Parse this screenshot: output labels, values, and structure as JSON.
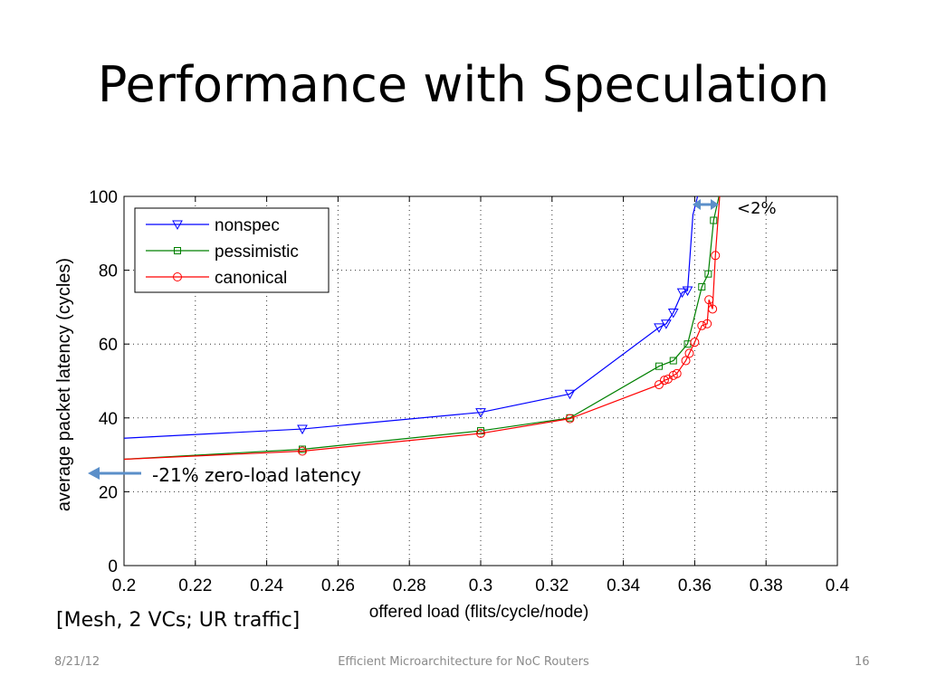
{
  "slide": {
    "title": "Performance with Speculation",
    "annotation_zero_load": "-21% zero-load latency",
    "annotation_gap": "<2%",
    "caption": "[Mesh, 2 VCs; UR traffic]"
  },
  "footer": {
    "date": "8/21/12",
    "center": "Efficient Microarchitecture for NoC Routers",
    "page": "16"
  },
  "colors": {
    "nonspec": "#0000ff",
    "pessimistic": "#008000",
    "canonical": "#ff0000",
    "arrow": "#5b8fc9"
  },
  "chart_data": {
    "type": "line",
    "xlabel": "offered load (flits/cycle/node)",
    "ylabel": "average packet latency (cycles)",
    "xlim": [
      0.2,
      0.4
    ],
    "ylim": [
      0,
      100
    ],
    "xticks": [
      0.2,
      0.22,
      0.24,
      0.26,
      0.28,
      0.3,
      0.32,
      0.34,
      0.36,
      0.38,
      0.4
    ],
    "xtick_labels": [
      "0.2",
      "0.22",
      "0.24",
      "0.26",
      "0.28",
      "0.3",
      "0.32",
      "0.34",
      "0.36",
      "0.38",
      "0.4"
    ],
    "yticks": [
      0,
      20,
      40,
      60,
      80,
      100
    ],
    "ytick_labels": [
      "0",
      "20",
      "40",
      "60",
      "80",
      "100"
    ],
    "grid": true,
    "legend_position": "top-left",
    "series": [
      {
        "name": "nonspec",
        "marker": "triangle-down",
        "x": [
          0.2,
          0.25,
          0.3,
          0.325,
          0.35,
          0.352,
          0.354,
          0.3565,
          0.358,
          0.3595,
          0.3608
        ],
        "y": [
          34.5,
          37,
          41.5,
          46.5,
          64.5,
          65.5,
          68.5,
          74,
          74.5,
          95,
          100
        ],
        "marked": [
          false,
          true,
          true,
          true,
          true,
          true,
          true,
          true,
          true,
          false,
          false
        ]
      },
      {
        "name": "pessimistic",
        "marker": "square",
        "x": [
          0.2,
          0.25,
          0.3,
          0.325,
          0.35,
          0.354,
          0.358,
          0.362,
          0.3638,
          0.3653,
          0.3668
        ],
        "y": [
          28.8,
          31.5,
          36.5,
          40,
          54,
          55.5,
          60,
          75.5,
          79,
          93.5,
          100
        ],
        "marked": [
          false,
          true,
          true,
          true,
          true,
          true,
          true,
          true,
          true,
          true,
          false
        ]
      },
      {
        "name": "canonical",
        "marker": "circle",
        "x": [
          0.2,
          0.25,
          0.3,
          0.325,
          0.35,
          0.3515,
          0.3525,
          0.354,
          0.355,
          0.3575,
          0.3585,
          0.36,
          0.362,
          0.3635,
          0.364,
          0.365,
          0.3658,
          0.367
        ],
        "y": [
          28.8,
          31,
          35.8,
          39.8,
          49,
          50.2,
          50.5,
          51.5,
          52,
          55.5,
          57.5,
          60.5,
          65,
          65.5,
          72,
          69.5,
          84,
          100
        ],
        "marked": [
          false,
          true,
          true,
          true,
          true,
          true,
          true,
          true,
          true,
          true,
          true,
          true,
          true,
          true,
          true,
          true,
          true,
          false
        ]
      }
    ]
  }
}
